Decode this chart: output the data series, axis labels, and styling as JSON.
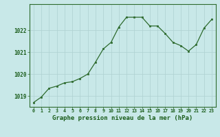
{
  "x": [
    0,
    1,
    2,
    3,
    4,
    5,
    6,
    7,
    8,
    9,
    10,
    11,
    12,
    13,
    14,
    15,
    16,
    17,
    18,
    19,
    20,
    21,
    22,
    23
  ],
  "y": [
    1018.7,
    1018.95,
    1019.35,
    1019.45,
    1019.6,
    1019.65,
    1019.8,
    1020.0,
    1020.55,
    1021.15,
    1021.45,
    1022.15,
    1022.6,
    1022.6,
    1022.6,
    1022.2,
    1022.2,
    1021.85,
    1021.45,
    1021.3,
    1021.05,
    1021.35,
    1022.1,
    1022.5
  ],
  "line_color": "#2d6a2d",
  "marker_color": "#2d6a2d",
  "bg_color": "#c8e8e8",
  "grid_color": "#aed0d0",
  "xlabel": "Graphe pression niveau de la mer (hPa)",
  "xlabel_color": "#1a5c1a",
  "tick_color": "#1a5c1a",
  "ylim": [
    1018.5,
    1023.2
  ],
  "yticks": [
    1019,
    1020,
    1021,
    1022
  ],
  "xlim": [
    -0.5,
    23.5
  ],
  "spine_color": "#2d6a2d",
  "border_color": "#2d6a2d",
  "bottom_bar_color": "#2d6a2d"
}
